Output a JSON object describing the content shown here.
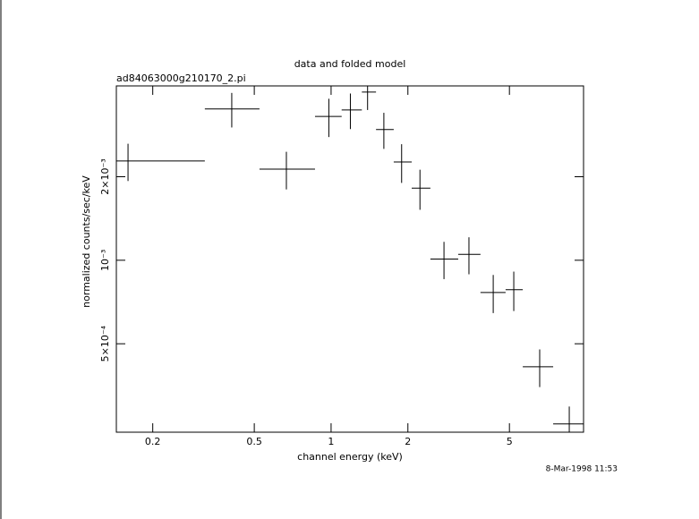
{
  "chart_data": {
    "type": "errorbar",
    "title": "data and folded model",
    "subtitle": "ad84063000g210170_2.pi",
    "x_label": "channel energy (keV)",
    "y_label": "normalized counts/sec/keV",
    "annotation": "8-Mar-1998 11:53",
    "x_scale": "log",
    "y_scale": "log",
    "color": "#000000",
    "xlim": [
      0.144,
      9.76
    ],
    "ylim": [
      0.00024,
      0.00425
    ],
    "xticks": [
      0.2,
      0.5,
      1,
      2,
      5
    ],
    "yticks": [
      {
        "value": 0.0005,
        "label": "5×10⁻⁴"
      },
      {
        "value": 0.001,
        "label": "10⁻³"
      },
      {
        "value": 0.002,
        "label": "2×10⁻³"
      }
    ],
    "x": [
      0.16,
      0.408,
      0.668,
      0.98,
      1.19,
      1.39,
      1.61,
      1.89,
      2.23,
      2.77,
      3.47,
      4.32,
      5.2,
      6.57,
      8.58
    ],
    "bins": [
      0.144,
      0.32,
      0.524,
      0.865,
      1.1,
      1.32,
      1.5,
      1.76,
      2.07,
      2.45,
      3.15,
      3.85,
      4.83,
      5.64,
      7.42,
      9.76
    ],
    "values": [
      0.00228,
      0.00351,
      0.00213,
      0.0033,
      0.00348,
      0.00404,
      0.00296,
      0.00226,
      0.00182,
      0.00101,
      0.00105,
      0.000765,
      0.000783,
      0.000413,
      0.000257
    ],
    "errors": [
      0.00035,
      0.0005,
      0.00033,
      0.00052,
      0.00051,
      0.00056,
      0.00044,
      0.00036,
      0.0003,
      0.000155,
      0.00016,
      0.00012,
      0.000127,
      6.4e-05,
      4e-05
    ]
  }
}
